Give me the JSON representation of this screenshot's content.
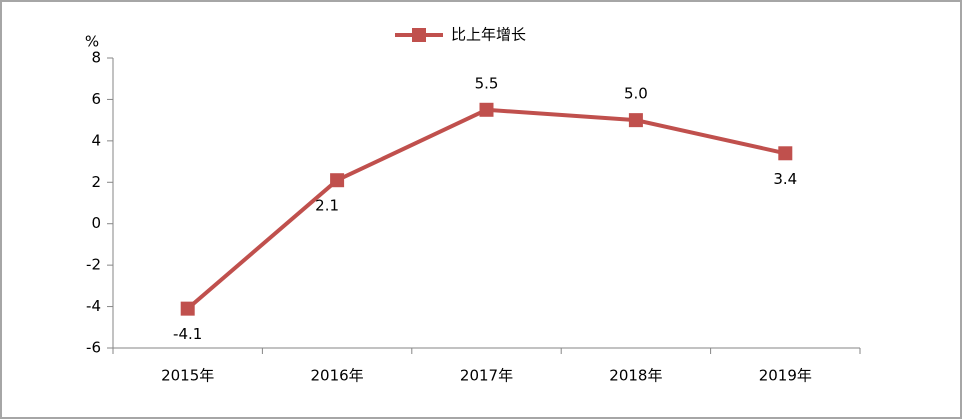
{
  "chart_data": {
    "type": "line",
    "y_unit": "%",
    "categories": [
      "2015年",
      "2016年",
      "2017年",
      "2018年",
      "2019年"
    ],
    "series": [
      {
        "name": "比上年增长",
        "color": "#c0504d",
        "values": [
          -4.1,
          2.1,
          5.5,
          5.0,
          3.4
        ],
        "value_labels": [
          "-4.1",
          "2.1",
          "5.5",
          "5.0",
          "3.4"
        ]
      }
    ],
    "ylim": [
      -6,
      8
    ],
    "yticks": [
      -6,
      -4,
      -2,
      0,
      2,
      4,
      6,
      8
    ],
    "grid": false,
    "legend": "top"
  }
}
